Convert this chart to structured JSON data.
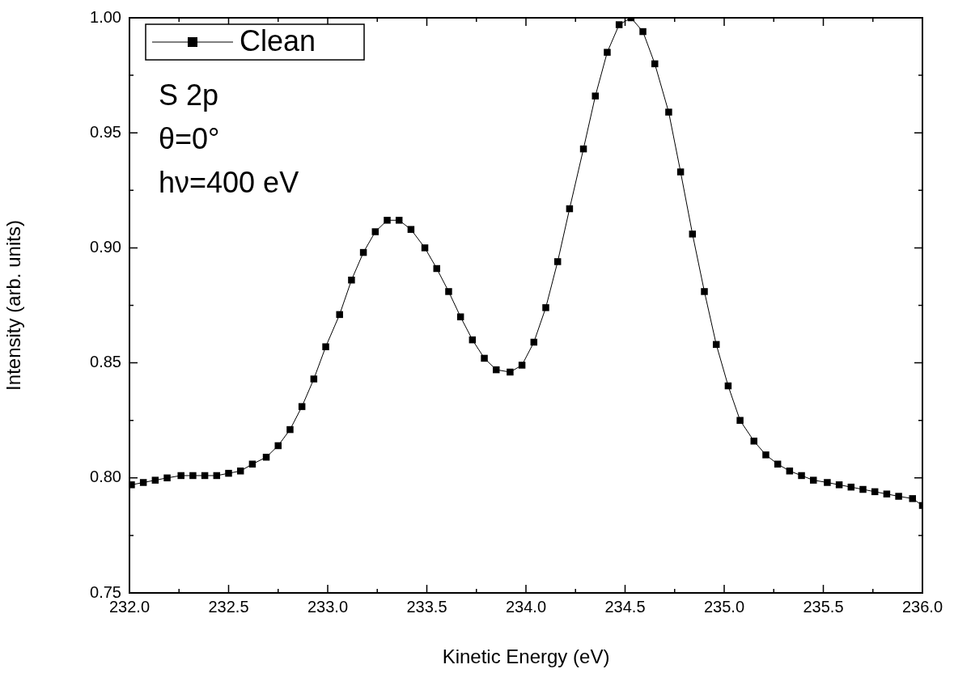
{
  "chart_data": {
    "type": "line",
    "xlabel": "Kinetic Energy (eV)",
    "ylabel": "Intensity (arb. units)",
    "annotations": [
      "S 2p",
      "θ=0°",
      "hν=400 eV"
    ],
    "xlim": [
      232,
      236
    ],
    "xticks": [
      {
        "value": 232,
        "label": "232.0"
      },
      {
        "value": 232.5,
        "label": "232.5"
      },
      {
        "value": 233,
        "label": "233.0"
      },
      {
        "value": 233.5,
        "label": "233.5"
      },
      {
        "value": 234,
        "label": "234.0"
      },
      {
        "value": 234.5,
        "label": "234.5"
      },
      {
        "value": 235,
        "label": "235.0"
      },
      {
        "value": 235.5,
        "label": "235.5"
      },
      {
        "value": 236,
        "label": "236.0"
      }
    ],
    "ylim": [
      0.75,
      1.0
    ],
    "yticks": [
      0.75,
      {
        "value": 0.8,
        "label": "0.80"
      },
      0.85,
      {
        "value": 0.9,
        "label": "0.90"
      },
      0.95,
      {
        "value": 1.0,
        "label": "1.00"
      }
    ],
    "grid": false,
    "legend": "top left",
    "marker": "square",
    "line_style": "solid",
    "series": [
      {
        "name": "Clean",
        "color": "#000000",
        "x": [
          232.01,
          232.07,
          232.13,
          232.19,
          232.26,
          232.32,
          232.38,
          232.44,
          232.5,
          232.56,
          232.62,
          232.69,
          232.75,
          232.81,
          232.87,
          232.93,
          232.99,
          233.06,
          233.12,
          233.18,
          233.24,
          233.3,
          233.36,
          233.42,
          233.49,
          233.55,
          233.61,
          233.67,
          233.73,
          233.79,
          233.85,
          233.92,
          233.98,
          234.04,
          234.1,
          234.16,
          234.22,
          234.29,
          234.35,
          234.41,
          234.47,
          234.53,
          234.59,
          234.65,
          234.72,
          234.78,
          234.84,
          234.9,
          234.96,
          235.02,
          235.08,
          235.15,
          235.21,
          235.27,
          235.33,
          235.39,
          235.45,
          235.52,
          235.58,
          235.64,
          235.7,
          235.76,
          235.82,
          235.88,
          235.95,
          236.0
        ],
        "values": [
          0.797,
          0.798,
          0.799,
          0.8,
          0.801,
          0.801,
          0.801,
          0.801,
          0.802,
          0.803,
          0.806,
          0.809,
          0.814,
          0.821,
          0.831,
          0.843,
          0.857,
          0.871,
          0.886,
          0.898,
          0.907,
          0.912,
          0.912,
          0.908,
          0.9,
          0.891,
          0.881,
          0.87,
          0.86,
          0.852,
          0.847,
          0.846,
          0.849,
          0.859,
          0.874,
          0.894,
          0.917,
          0.943,
          0.966,
          0.985,
          0.997,
          1.0,
          0.994,
          0.98,
          0.959,
          0.933,
          0.906,
          0.881,
          0.858,
          0.84,
          0.825,
          0.816,
          0.81,
          0.806,
          0.803,
          0.801,
          0.799,
          0.798,
          0.797,
          0.796,
          0.795,
          0.794,
          0.793,
          0.792,
          0.791,
          0.788
        ]
      }
    ]
  }
}
